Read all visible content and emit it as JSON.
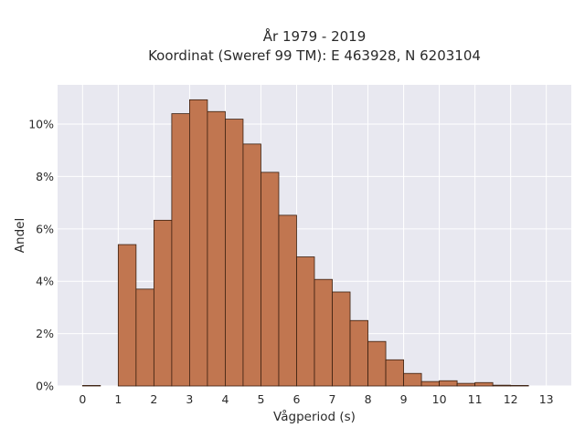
{
  "chart_data": {
    "type": "bar",
    "title": "År 1979 - 2019",
    "subtitle": "Koordinat (Sweref 99 TM): E 463928, N 6203104",
    "xlabel": "Vågperiod (s)",
    "ylabel": "Andel",
    "xlim": [
      -0.7,
      13.7
    ],
    "ylim": [
      0,
      11.5
    ],
    "x_ticks": [
      0,
      1,
      2,
      3,
      4,
      5,
      6,
      7,
      8,
      9,
      10,
      11,
      12,
      13
    ],
    "y_ticks": [
      0,
      2,
      4,
      6,
      8,
      10
    ],
    "y_tick_labels": [
      "0%",
      "2%",
      "4%",
      "6%",
      "8%",
      "10%"
    ],
    "bin_width": 0.5,
    "bar_color": "#c17650",
    "bar_edge_color": "#3a1f0f",
    "plot_background": "#e8e8f0",
    "grid": true,
    "bins": [
      {
        "x": 0.0,
        "value": 0.02
      },
      {
        "x": 0.5,
        "value": 0.0
      },
      {
        "x": 1.0,
        "value": 5.4
      },
      {
        "x": 1.5,
        "value": 3.7
      },
      {
        "x": 2.0,
        "value": 6.33
      },
      {
        "x": 2.5,
        "value": 10.4
      },
      {
        "x": 3.0,
        "value": 10.93
      },
      {
        "x": 3.5,
        "value": 10.48
      },
      {
        "x": 4.0,
        "value": 10.19
      },
      {
        "x": 4.5,
        "value": 9.24
      },
      {
        "x": 5.0,
        "value": 8.16
      },
      {
        "x": 5.5,
        "value": 6.52
      },
      {
        "x": 6.0,
        "value": 4.93
      },
      {
        "x": 6.5,
        "value": 4.07
      },
      {
        "x": 7.0,
        "value": 3.59
      },
      {
        "x": 7.5,
        "value": 2.5
      },
      {
        "x": 8.0,
        "value": 1.7
      },
      {
        "x": 8.5,
        "value": 1.0
      },
      {
        "x": 9.0,
        "value": 0.48
      },
      {
        "x": 9.5,
        "value": 0.17
      },
      {
        "x": 10.0,
        "value": 0.2
      },
      {
        "x": 10.5,
        "value": 0.1
      },
      {
        "x": 11.0,
        "value": 0.13
      },
      {
        "x": 11.5,
        "value": 0.03
      },
      {
        "x": 12.0,
        "value": 0.02
      }
    ]
  }
}
